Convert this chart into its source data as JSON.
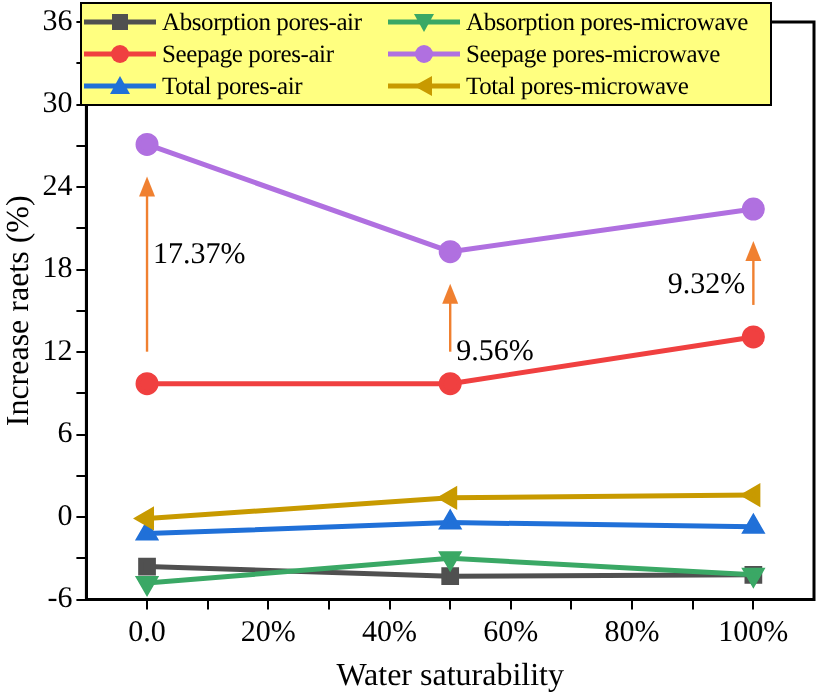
{
  "chart_data": {
    "type": "line",
    "xlabel": "Water saturability",
    "ylabel": "Increase raets (%)",
    "x": [
      0,
      50,
      100
    ],
    "xlim": [
      -10,
      110
    ],
    "xticks": [
      {
        "value": 0,
        "label": "0.0"
      },
      {
        "value": 10,
        "label": null
      },
      {
        "value": 20,
        "label": "20%"
      },
      {
        "value": 30,
        "label": null
      },
      {
        "value": 40,
        "label": "40%"
      },
      {
        "value": 50,
        "label": null
      },
      {
        "value": 60,
        "label": "60%"
      },
      {
        "value": 70,
        "label": null
      },
      {
        "value": 80,
        "label": "80%"
      },
      {
        "value": 90,
        "label": null
      },
      {
        "value": 100,
        "label": "100%"
      }
    ],
    "ylim": [
      -6,
      36
    ],
    "yticks": [
      -6,
      {
        "value": -3,
        "label": null
      },
      0,
      {
        "value": 3,
        "label": null
      },
      6,
      {
        "value": 9,
        "label": null
      },
      12,
      {
        "value": 15,
        "label": null
      },
      18,
      {
        "value": 21,
        "label": null
      },
      24,
      {
        "value": 27,
        "label": null
      },
      30,
      {
        "value": 33,
        "label": null
      },
      36
    ],
    "series": [
      {
        "name": "Absorption pores-air",
        "color": "#505050",
        "marker": "square",
        "values": [
          -3.6,
          -4.3,
          -4.2
        ]
      },
      {
        "name": "Absorption pores-microwave",
        "color": "#3aa865",
        "marker": "triangle-down",
        "values": [
          -4.8,
          -3.0,
          -4.2
        ]
      },
      {
        "name": "Seepage pores-air",
        "color": "#f04040",
        "marker": "circle",
        "values": [
          9.7,
          9.7,
          13.1
        ]
      },
      {
        "name": "Seepage pores-microwave",
        "color": "#b070e0",
        "marker": "circle",
        "values": [
          27.1,
          19.3,
          22.4
        ]
      },
      {
        "name": "Total pores-air",
        "color": "#2070d8",
        "marker": "triangle",
        "values": [
          -1.2,
          -0.4,
          -0.7
        ]
      },
      {
        "name": "Total pores-microwave",
        "color": "#c89a00",
        "marker": "triangle-left",
        "values": [
          -0.1,
          1.4,
          1.6
        ]
      }
    ],
    "annotations": [
      "17.37%",
      "9.56%",
      "9.32%"
    ],
    "legend": "top",
    "grid": false
  }
}
